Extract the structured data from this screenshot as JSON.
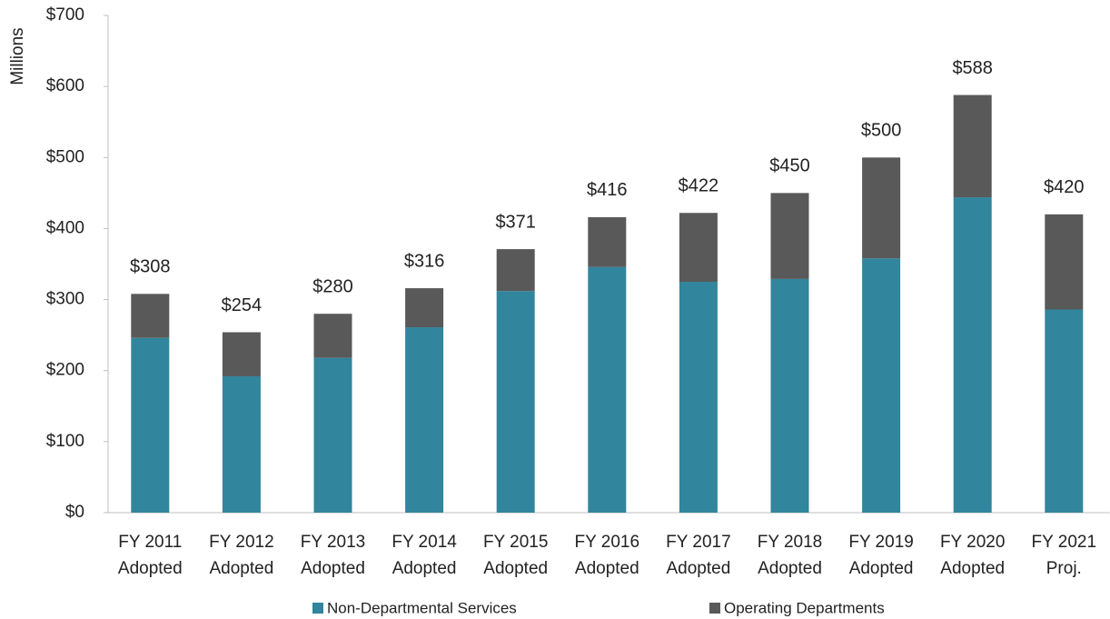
{
  "chart_data": {
    "type": "stacked_bar",
    "y_label": "Millions",
    "categories": [
      [
        "FY 2011",
        "Adopted"
      ],
      [
        "FY 2012",
        "Adopted"
      ],
      [
        "FY 2013",
        "Adopted"
      ],
      [
        "FY 2014",
        "Adopted"
      ],
      [
        "FY 2015",
        "Adopted"
      ],
      [
        "FY 2016",
        "Adopted"
      ],
      [
        "FY 2017",
        "Adopted"
      ],
      [
        "FY 2018",
        "Adopted"
      ],
      [
        "FY 2019",
        "Adopted"
      ],
      [
        "FY 2020",
        "Adopted"
      ],
      [
        "FY 2021",
        "Proj."
      ]
    ],
    "series": [
      {
        "name": "Non-Departmental Services",
        "color": "#31859c",
        "values": [
          246,
          192,
          218,
          261,
          312,
          346,
          325,
          329,
          358,
          444,
          286
        ]
      },
      {
        "name": "Operating Departments",
        "color": "#595959",
        "values": [
          62,
          62,
          62,
          55,
          59,
          70,
          97,
          121,
          142,
          144,
          134
        ]
      }
    ],
    "totals": [
      308,
      254,
      280,
      316,
      371,
      416,
      422,
      450,
      500,
      588,
      420
    ],
    "total_labels": [
      "$308",
      "$254",
      "$280",
      "$316",
      "$371",
      "$416",
      "$422",
      "$450",
      "$500",
      "$588",
      "$420"
    ],
    "ylim": [
      0,
      700
    ],
    "yticks": [
      {
        "value": 0,
        "label": "$0"
      },
      {
        "value": 100,
        "label": "$100"
      },
      {
        "value": 200,
        "label": "$200"
      },
      {
        "value": 300,
        "label": "$300"
      },
      {
        "value": 400,
        "label": "$400"
      },
      {
        "value": 500,
        "label": "$500"
      },
      {
        "value": 600,
        "label": "$600"
      },
      {
        "value": 700,
        "label": "$700"
      }
    ],
    "legend": "bottom",
    "grid": false
  }
}
